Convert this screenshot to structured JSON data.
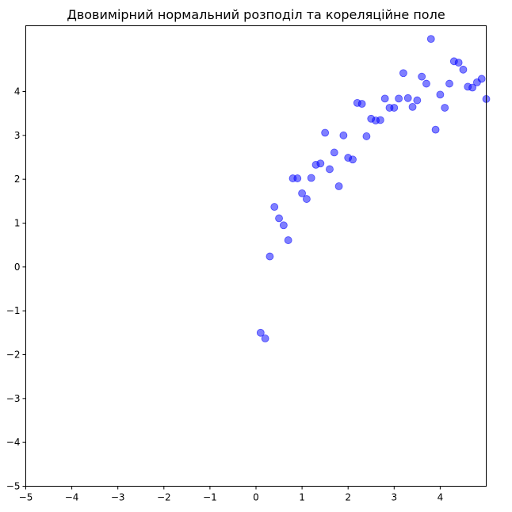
{
  "chart_data": {
    "type": "scatter",
    "title": "Двовимірний нормальний розподіл та кореляційне поле",
    "xlabel": "",
    "ylabel": "",
    "xlim": [
      -5,
      5.0
    ],
    "ylim": [
      -5,
      5.5
    ],
    "x_ticks": [
      -5,
      -4,
      -3,
      -2,
      -1,
      0,
      1,
      2,
      3,
      4
    ],
    "y_ticks": [
      -5,
      -4,
      -3,
      -2,
      -1,
      0,
      1,
      2,
      3,
      4
    ],
    "x_tick_labels": [
      "−5",
      "−4",
      "−3",
      "−2",
      "−1",
      "0",
      "1",
      "2",
      "3",
      "4"
    ],
    "y_tick_labels": [
      "−5",
      "−4",
      "−3",
      "−2",
      "−1",
      "0",
      "1",
      "2",
      "3",
      "4"
    ],
    "grid": false,
    "point_color": "#0000ff",
    "point_alpha": 0.5,
    "points": [
      [
        0.1,
        -1.5
      ],
      [
        0.2,
        -1.63
      ],
      [
        0.3,
        0.24
      ],
      [
        0.4,
        1.37
      ],
      [
        0.5,
        1.11
      ],
      [
        0.6,
        0.95
      ],
      [
        0.7,
        0.61
      ],
      [
        0.8,
        2.02
      ],
      [
        0.9,
        2.02
      ],
      [
        1.0,
        1.68
      ],
      [
        1.1,
        1.55
      ],
      [
        1.2,
        2.03
      ],
      [
        1.3,
        2.33
      ],
      [
        1.4,
        2.36
      ],
      [
        1.5,
        3.06
      ],
      [
        1.6,
        2.23
      ],
      [
        1.7,
        2.61
      ],
      [
        1.8,
        1.84
      ],
      [
        1.9,
        3.0
      ],
      [
        2.0,
        2.49
      ],
      [
        2.1,
        2.45
      ],
      [
        2.2,
        3.74
      ],
      [
        2.3,
        3.72
      ],
      [
        2.4,
        2.98
      ],
      [
        2.5,
        3.38
      ],
      [
        2.6,
        3.34
      ],
      [
        2.7,
        3.35
      ],
      [
        2.8,
        3.84
      ],
      [
        2.9,
        3.63
      ],
      [
        3.0,
        3.63
      ],
      [
        3.1,
        3.84
      ],
      [
        3.2,
        4.42
      ],
      [
        3.3,
        3.85
      ],
      [
        3.4,
        3.65
      ],
      [
        3.5,
        3.8
      ],
      [
        3.6,
        4.34
      ],
      [
        3.7,
        4.18
      ],
      [
        3.8,
        5.2
      ],
      [
        3.9,
        3.13
      ],
      [
        4.0,
        3.93
      ],
      [
        4.1,
        3.63
      ],
      [
        4.2,
        4.18
      ],
      [
        4.3,
        4.69
      ],
      [
        4.4,
        4.66
      ],
      [
        4.5,
        4.5
      ],
      [
        4.6,
        4.11
      ],
      [
        4.7,
        4.09
      ],
      [
        4.8,
        4.21
      ],
      [
        4.9,
        4.29
      ],
      [
        5.0,
        3.83
      ]
    ]
  }
}
